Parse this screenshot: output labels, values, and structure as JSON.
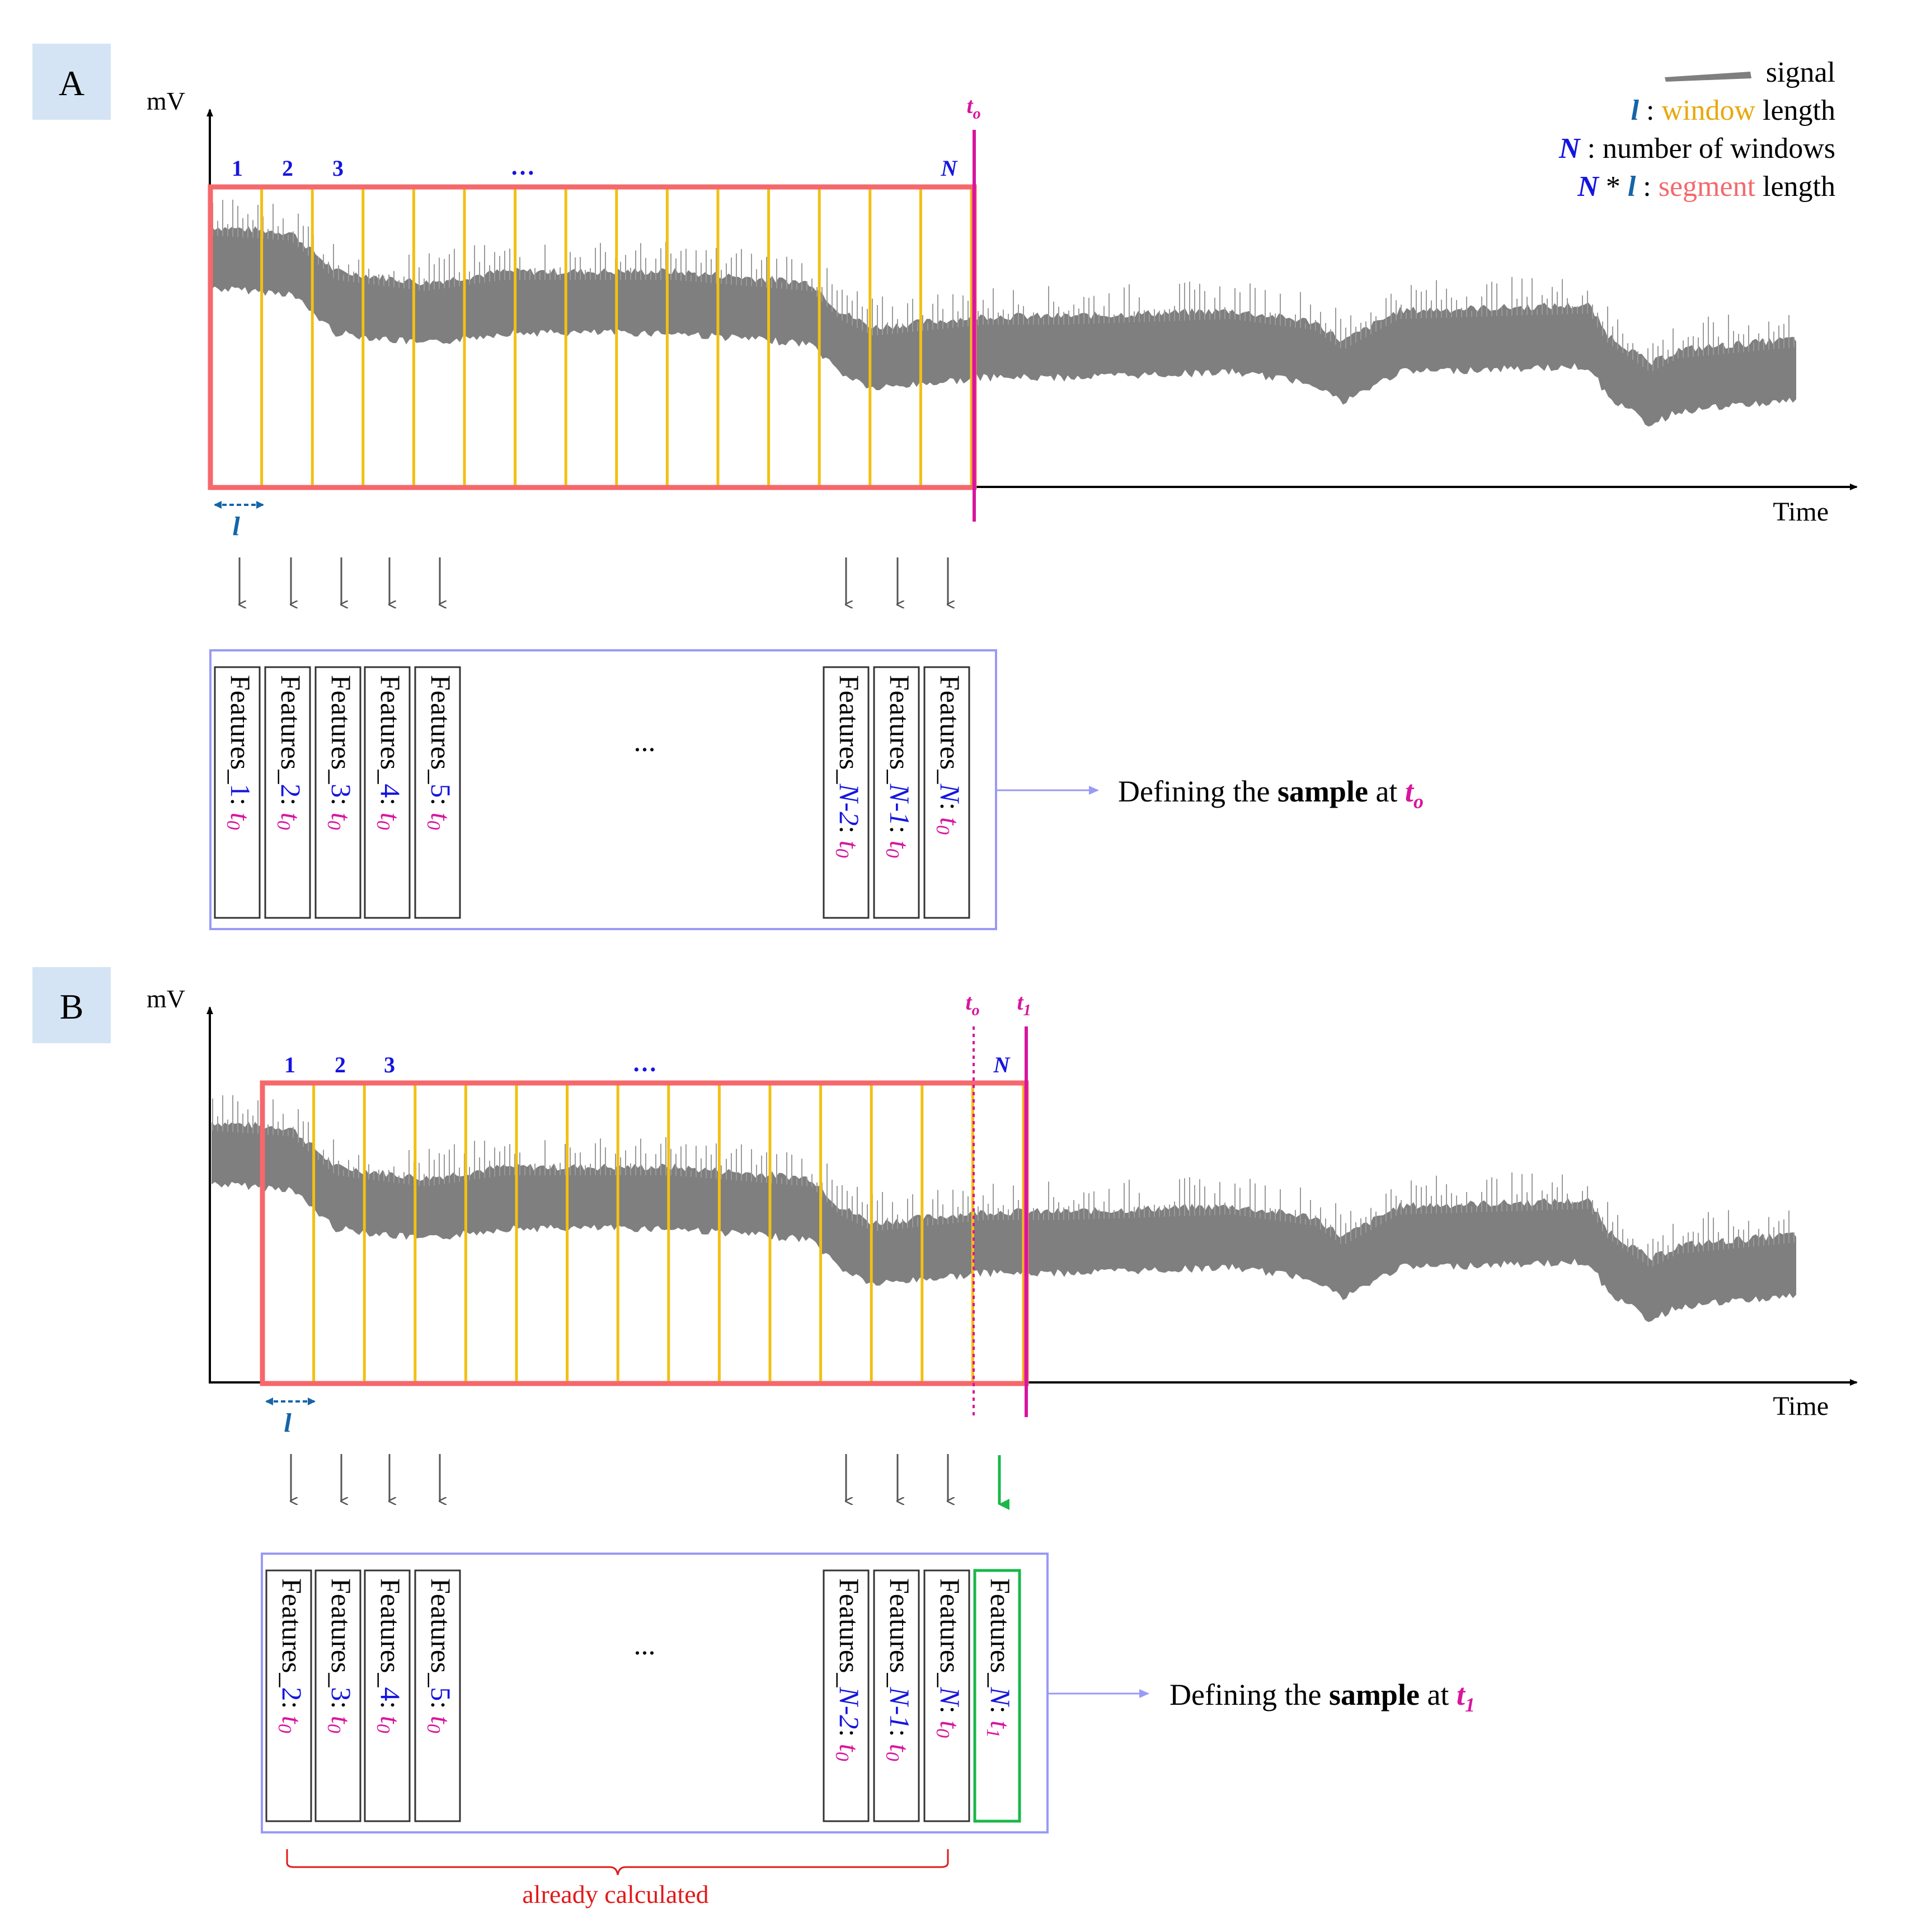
{
  "legend": {
    "signal": "signal",
    "l_symbol": "l",
    "colon": " : ",
    "window_word": "window",
    "length_word": " length",
    "N_symbol": "N",
    "num_windows_text": " : number of windows",
    "star": " * ",
    "segment_word": "segment"
  },
  "panel_a": {
    "label": "A",
    "y_axis": "mV",
    "x_axis": "Time",
    "window_numbers": [
      "1",
      "2",
      "3"
    ],
    "window_ellipsis": "…",
    "last_window": "N",
    "time_marker": "t",
    "time_marker_sub": "o",
    "window_length_symbol": "l",
    "features": [
      {
        "prefix": "Features_",
        "idx": "1",
        "t": "t",
        "sub": "0"
      },
      {
        "prefix": "Features_",
        "idx": "2",
        "t": "t",
        "sub": "0"
      },
      {
        "prefix": "Features_",
        "idx": "3",
        "t": "t",
        "sub": "0"
      },
      {
        "prefix": "Features_",
        "idx": "4",
        "t": "t",
        "sub": "0"
      },
      {
        "prefix": "Features_",
        "idx": "5",
        "t": "t",
        "sub": "0"
      },
      {
        "prefix": "Features_",
        "idx": "N-2",
        "t": "t",
        "sub": "0"
      },
      {
        "prefix": "Features_",
        "idx": "N-1",
        "t": "t",
        "sub": "0"
      },
      {
        "prefix": "Features_",
        "idx": "N",
        "t": "t",
        "sub": "0"
      }
    ],
    "box_ellipsis": "...",
    "sample_prefix": "Defining the ",
    "sample_bold": "sample",
    "sample_mid": " at ",
    "sample_t": "t",
    "sample_sub": "o"
  },
  "panel_b": {
    "label": "B",
    "y_axis": "mV",
    "x_axis": "Time",
    "window_numbers": [
      "1",
      "2",
      "3"
    ],
    "window_ellipsis": "…",
    "last_window": "N",
    "time_marker_0": "t",
    "time_marker_0_sub": "o",
    "time_marker_1": "t",
    "time_marker_1_sub": "1",
    "window_length_symbol": "l",
    "features": [
      {
        "prefix": "Features_",
        "idx": "2",
        "t": "t",
        "sub": "0"
      },
      {
        "prefix": "Features_",
        "idx": "3",
        "t": "t",
        "sub": "0"
      },
      {
        "prefix": "Features_",
        "idx": "4",
        "t": "t",
        "sub": "0"
      },
      {
        "prefix": "Features_",
        "idx": "5",
        "t": "t",
        "sub": "0"
      },
      {
        "prefix": "Features_",
        "idx": "N-2",
        "t": "t",
        "sub": "0"
      },
      {
        "prefix": "Features_",
        "idx": "N-1",
        "t": "t",
        "sub": "0"
      },
      {
        "prefix": "Features_",
        "idx": "N",
        "t": "t",
        "sub": "0"
      },
      {
        "prefix": "Features_",
        "idx": "N",
        "t": "t",
        "sub": "1",
        "new": true
      }
    ],
    "box_ellipsis": "...",
    "sample_prefix": "Defining the ",
    "sample_bold": "sample",
    "sample_mid": " at ",
    "sample_t": "t",
    "sample_sub": "1",
    "brace_label": "already calculated"
  },
  "colors": {
    "signal": "#7f7f7f",
    "window": "#f2c012",
    "segment": "#f5686b",
    "time_marker": "#d8159e",
    "index_blue": "#1515e0",
    "l_blue": "#1565a8",
    "features_box": "#9a9af5",
    "new_feature": "#19b84a",
    "brace": "#e11a1a",
    "panel_label_bg": "#d4e4f4"
  }
}
